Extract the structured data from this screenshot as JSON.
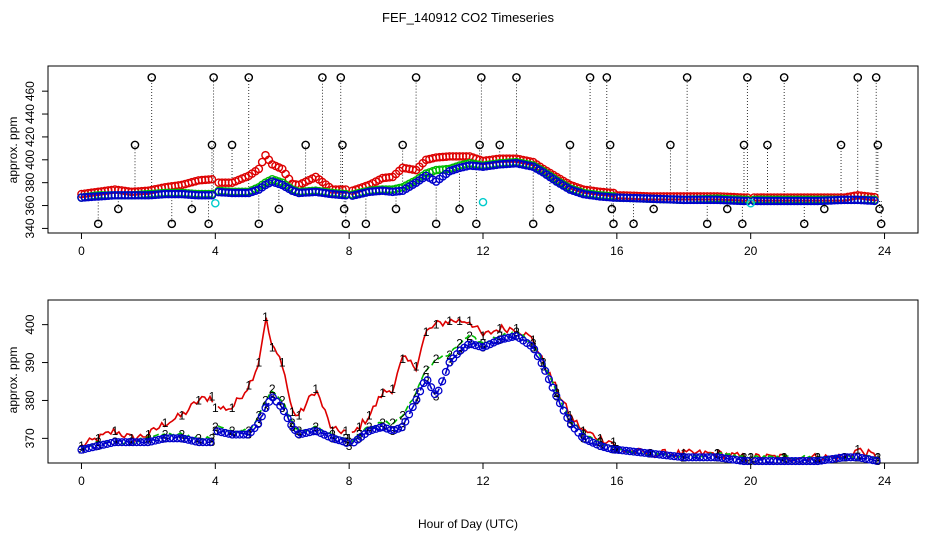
{
  "chart_data": [
    {
      "type": "scatter",
      "title": "FEF_140912  CO2 Timeseries",
      "xlabel": "",
      "ylabel": "approx. ppm",
      "xlim": [
        -1,
        25
      ],
      "ylim": [
        336,
        482
      ],
      "x_ticks": [
        0,
        4,
        8,
        12,
        16,
        20,
        24
      ],
      "x_tick_labels": [
        "0",
        "4",
        "8",
        "12",
        "16",
        "20",
        "24"
      ],
      "y_ticks": [
        340,
        380,
        420,
        460
      ],
      "y_tick_labels": [
        "340",
        "380",
        "420",
        "460"
      ],
      "y_ticks_minor": [
        360,
        400,
        440
      ],
      "y_tick_minor_labels": [
        "360",
        "400",
        "440"
      ],
      "colors": {
        "raw": "#000000",
        "s1": "#dd0000",
        "s2": "#00bb00",
        "s3": "#0000cc",
        "cyan": "#00cccc"
      },
      "outlier_points": [
        [
          0.5,
          344
        ],
        [
          1.1,
          357
        ],
        [
          1.6,
          413
        ],
        [
          2.1,
          472
        ],
        [
          2.7,
          344
        ],
        [
          3.3,
          357
        ],
        [
          3.8,
          344
        ],
        [
          3.9,
          413
        ],
        [
          3.95,
          472
        ],
        [
          4.5,
          413
        ],
        [
          5.0,
          472
        ],
        [
          5.3,
          344
        ],
        [
          5.9,
          357
        ],
        [
          6.7,
          413
        ],
        [
          7.2,
          472
        ],
        [
          7.75,
          472
        ],
        [
          7.8,
          413
        ],
        [
          7.85,
          357
        ],
        [
          7.9,
          344
        ],
        [
          8.5,
          344
        ],
        [
          9.4,
          357
        ],
        [
          9.6,
          413
        ],
        [
          10.0,
          472
        ],
        [
          10.6,
          344
        ],
        [
          11.3,
          357
        ],
        [
          11.8,
          344
        ],
        [
          11.9,
          413
        ],
        [
          11.95,
          472
        ],
        [
          12.5,
          413
        ],
        [
          13.0,
          472
        ],
        [
          13.5,
          344
        ],
        [
          14.0,
          357
        ],
        [
          14.6,
          413
        ],
        [
          15.2,
          472
        ],
        [
          15.7,
          472
        ],
        [
          15.8,
          413
        ],
        [
          15.85,
          357
        ],
        [
          15.9,
          344
        ],
        [
          16.5,
          344
        ],
        [
          17.1,
          357
        ],
        [
          17.6,
          413
        ],
        [
          18.1,
          472
        ],
        [
          18.7,
          344
        ],
        [
          19.3,
          357
        ],
        [
          19.75,
          344
        ],
        [
          19.8,
          413
        ],
        [
          19.9,
          472
        ],
        [
          20.5,
          413
        ],
        [
          21.0,
          472
        ],
        [
          21.6,
          344
        ],
        [
          22.2,
          357
        ],
        [
          22.7,
          413
        ],
        [
          23.2,
          472
        ],
        [
          23.75,
          472
        ],
        [
          23.8,
          413
        ],
        [
          23.85,
          357
        ],
        [
          23.9,
          344
        ]
      ],
      "cyan_points": [
        [
          4.0,
          362
        ],
        [
          12.0,
          363
        ],
        [
          20.0,
          362
        ]
      ]
    },
    {
      "type": "line",
      "title": "",
      "xlabel": "Hour of Day (UTC)",
      "ylabel": "approx. ppm",
      "xlim": [
        -1,
        25
      ],
      "ylim": [
        363.5,
        406.5
      ],
      "x_ticks": [
        0,
        4,
        8,
        12,
        16,
        20,
        24
      ],
      "x_tick_labels": [
        "0",
        "4",
        "8",
        "12",
        "16",
        "20",
        "24"
      ],
      "y_ticks": [
        370,
        380,
        390,
        400
      ],
      "y_tick_labels": [
        "370",
        "380",
        "390",
        "400"
      ],
      "series_markers": [
        "1",
        "2",
        "3"
      ],
      "series_colors": [
        "#dd0000",
        "#00bb00",
        "#0000cc"
      ],
      "x": [
        0,
        0.5,
        1,
        1.5,
        2,
        2.5,
        3,
        3.5,
        3.9,
        4.0,
        4.5,
        5,
        5.3,
        5.5,
        5.7,
        6.0,
        6.3,
        6.5,
        7,
        7.5,
        7.9,
        8.0,
        8.3,
        8.6,
        9,
        9.3,
        9.6,
        10,
        10.3,
        10.6,
        11,
        11.3,
        11.6,
        12,
        12.5,
        13,
        13.5,
        13.8,
        14.2,
        14.6,
        15,
        15.5,
        15.9,
        16,
        17,
        18,
        19,
        19.8,
        20,
        21,
        22,
        22.8,
        23.2,
        23.8
      ],
      "series": [
        {
          "name": "1",
          "values": [
            368,
            370,
            372,
            370,
            371,
            374,
            376,
            380,
            381,
            378,
            378,
            384,
            390,
            402,
            394,
            390,
            377,
            376,
            383,
            372,
            372,
            370,
            373,
            376,
            382,
            383,
            391,
            389,
            398,
            400,
            401,
            401,
            401,
            397,
            399,
            399,
            396,
            390,
            383,
            376,
            372,
            370,
            369,
            367,
            366,
            366,
            366,
            365,
            365,
            365,
            365,
            365,
            367,
            365
          ]
        },
        {
          "name": "2",
          "values": [
            367,
            369,
            369,
            369,
            370,
            371,
            371,
            370,
            370,
            373,
            372,
            372,
            376,
            380,
            383,
            380,
            374,
            372,
            373,
            371,
            370,
            369,
            371,
            373,
            374,
            374,
            376,
            382,
            388,
            391,
            392,
            395,
            397,
            395,
            397,
            398,
            395,
            390,
            382,
            375,
            371,
            369,
            368,
            367,
            366,
            365,
            366,
            365,
            365,
            365,
            365,
            365,
            365,
            365
          ]
        },
        {
          "name": "3",
          "values": [
            367,
            368,
            369,
            369,
            369,
            370,
            370,
            369,
            369,
            372,
            371,
            371,
            374,
            378,
            381,
            378,
            373,
            371,
            372,
            370,
            369,
            368,
            370,
            372,
            373,
            372,
            373,
            380,
            386,
            381,
            390,
            393,
            395,
            394,
            396,
            397,
            394,
            389,
            381,
            374,
            370,
            368,
            367,
            367,
            366,
            365,
            365,
            364,
            364,
            364,
            364,
            365,
            365,
            364
          ]
        }
      ]
    }
  ]
}
